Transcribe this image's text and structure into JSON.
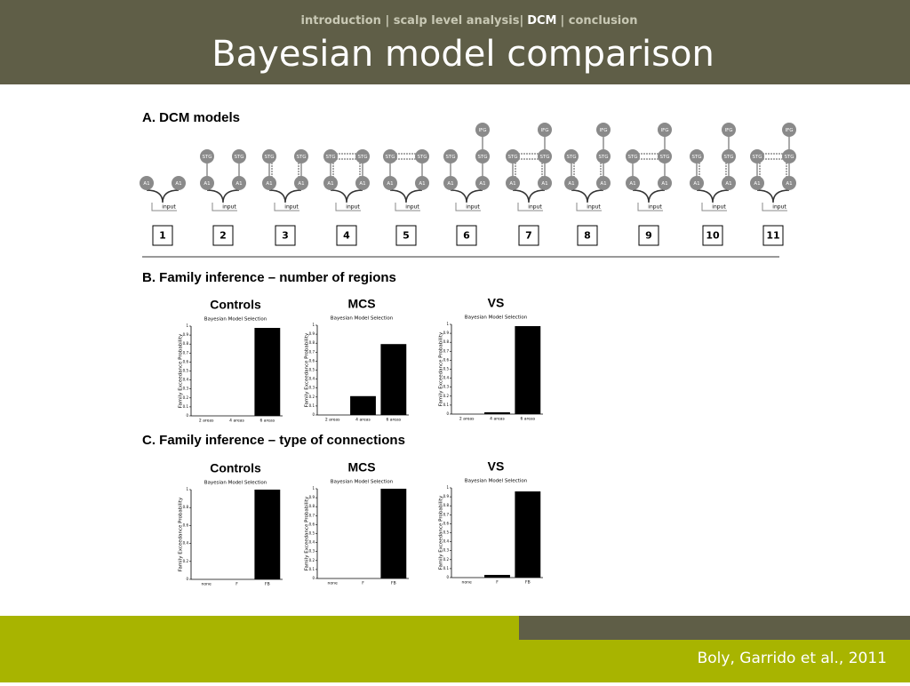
{
  "header": {
    "nav": [
      "introduction | scalp level analysis|",
      "DCM",
      "| conclusion"
    ],
    "title": "Bayesian model comparison"
  },
  "sections": [
    "A. DCM models",
    "B. Family inference – number of regions",
    "C. Family inference – type of connections"
  ],
  "models": [
    {
      "label": "1",
      "nodes": [
        "A1",
        "A1"
      ],
      "input": "input"
    },
    {
      "label": "2",
      "nodes": [
        "A1",
        "A1",
        "STG",
        "STG"
      ],
      "input": "input"
    },
    {
      "label": "3",
      "nodes": [
        "A1",
        "A1",
        "STG",
        "STG"
      ],
      "input": "input"
    },
    {
      "label": "4",
      "nodes": [
        "A1",
        "A1",
        "STG",
        "STG"
      ],
      "input": "input"
    },
    {
      "label": "5",
      "nodes": [
        "A1",
        "A1",
        "STG",
        "STG"
      ],
      "input": "input"
    },
    {
      "label": "6",
      "nodes": [
        "A1",
        "A1",
        "STG",
        "STG",
        "IFG"
      ],
      "input": "input"
    },
    {
      "label": "7",
      "nodes": [
        "A1",
        "A1",
        "STG",
        "STG",
        "IFG"
      ],
      "input": "input"
    },
    {
      "label": "8",
      "nodes": [
        "A1",
        "A1",
        "STG",
        "STG",
        "IFG"
      ],
      "input": "input"
    },
    {
      "label": "9",
      "nodes": [
        "A1",
        "A1",
        "STG",
        "STG",
        "IFG"
      ],
      "input": "input"
    },
    {
      "label": "10",
      "nodes": [
        "A1",
        "A1",
        "STG",
        "STG",
        "IFG"
      ],
      "input": "input"
    },
    {
      "label": "11",
      "nodes": [
        "A1",
        "A1",
        "STG",
        "STG",
        "IFG"
      ],
      "input": "input"
    }
  ],
  "chart_data": [
    {
      "type": "bar",
      "title": "Controls",
      "subtitle": "Bayesian Model Selection",
      "y_label": "Family Exceedance Probability",
      "categories": [
        "2 areas",
        "4 areas",
        "6 areas"
      ],
      "values": [
        0,
        0,
        0.98
      ],
      "color": "#000000",
      "ylim": [
        0,
        1
      ],
      "yticks": [
        0,
        0.1,
        0.2,
        0.3,
        0.4,
        0.5,
        0.6,
        0.7,
        0.8,
        0.9,
        1
      ]
    },
    {
      "type": "bar",
      "title": "MCS",
      "subtitle": "Bayesian Model Selection",
      "y_label": "Family Exceedance Probability",
      "categories": [
        "2 areas",
        "4 areas",
        "6 areas"
      ],
      "values": [
        0,
        0.21,
        0.79
      ],
      "color": "#000000",
      "ylim": [
        0,
        1
      ],
      "yticks": [
        0,
        0.1,
        0.2,
        0.3,
        0.4,
        0.5,
        0.6,
        0.7,
        0.8,
        0.9,
        1
      ]
    },
    {
      "type": "bar",
      "title": "VS",
      "subtitle": "Bayesian Model Selection",
      "y_label": "Family Exceedance Probability",
      "categories": [
        "2 areas",
        "4 areas",
        "6 areas"
      ],
      "values": [
        0,
        0.02,
        0.98
      ],
      "color": "#000000",
      "ylim": [
        0,
        1
      ],
      "yticks": [
        0,
        0.1,
        0.2,
        0.3,
        0.4,
        0.5,
        0.6,
        0.7,
        0.8,
        0.9,
        1
      ]
    },
    {
      "type": "bar",
      "title": "Controls",
      "subtitle": "Bayesian Model Selection",
      "y_label": "Family Exceedance Probability",
      "categories": [
        "none",
        "F",
        "FB"
      ],
      "values": [
        0,
        0,
        1
      ],
      "color": "#000000",
      "ylim": [
        0,
        1
      ],
      "yticks": [
        0,
        0.2,
        0.4,
        0.6,
        0.8,
        1
      ]
    },
    {
      "type": "bar",
      "title": "MCS",
      "subtitle": "Bayesian Model Selection",
      "y_label": "Family Exceedance Probability",
      "categories": [
        "none",
        "F",
        "FB"
      ],
      "values": [
        0,
        0,
        1
      ],
      "color": "#000000",
      "ylim": [
        0,
        1
      ],
      "yticks": [
        0,
        0.1,
        0.2,
        0.3,
        0.4,
        0.5,
        0.6,
        0.7,
        0.8,
        0.9,
        1
      ]
    },
    {
      "type": "bar",
      "title": "VS",
      "subtitle": "Bayesian Model Selection",
      "y_label": "Family Exceedance Probability",
      "categories": [
        "none",
        "F",
        "FB"
      ],
      "values": [
        0,
        0.03,
        0.96
      ],
      "color": "#000000",
      "ylim": [
        0,
        1
      ],
      "yticks": [
        0,
        0.1,
        0.2,
        0.3,
        0.4,
        0.5,
        0.6,
        0.7,
        0.8,
        0.9,
        1
      ]
    }
  ],
  "footer": {
    "citation": "Boly, Garrido et al., 2011"
  }
}
